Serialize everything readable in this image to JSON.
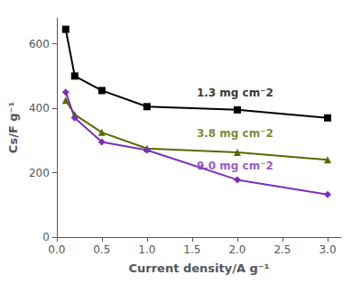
{
  "chart_data": {
    "type": "line",
    "xlabel": "Current density/A g⁻¹",
    "ylabel": "Cs/F g⁻¹",
    "x": [
      0.1,
      0.2,
      0.5,
      1.0,
      2.0,
      3.0
    ],
    "series": [
      {
        "name": "1.3 mg cm⁻2",
        "color": "#000000",
        "marker": "square",
        "values": [
          645,
          500,
          455,
          405,
          395,
          370
        ]
      },
      {
        "name": "3.8 mg cm⁻2",
        "color": "#556b00",
        "marker": "triangle",
        "values": [
          425,
          380,
          325,
          275,
          263,
          240
        ]
      },
      {
        "name": "9.0 mg cm⁻2",
        "color": "#7b2fbe",
        "marker": "diamond",
        "values": [
          450,
          370,
          295,
          270,
          178,
          132
        ]
      }
    ],
    "annotations": [
      {
        "text": "1.3 mg cm⁻2",
        "x": 1.55,
        "y": 430,
        "color": "#000000"
      },
      {
        "text": "3.8 mg cm⁻2",
        "x": 1.55,
        "y": 305,
        "color": "#556b00"
      },
      {
        "text": "9.0 mg cm⁻2",
        "x": 1.55,
        "y": 205,
        "color": "#7b2fbe"
      }
    ],
    "xlim": [
      0.0,
      3.15
    ],
    "ylim": [
      0,
      680
    ],
    "xticks": [
      {
        "value": 0,
        "label": "0.0"
      },
      0.5,
      {
        "value": 1,
        "label": "1.0"
      },
      1.5,
      {
        "value": 2,
        "label": "2.0"
      },
      2.5,
      {
        "value": 3,
        "label": "3.0"
      }
    ],
    "yticks": [
      0,
      200,
      400,
      600
    ],
    "grid": false,
    "legend": "none"
  }
}
